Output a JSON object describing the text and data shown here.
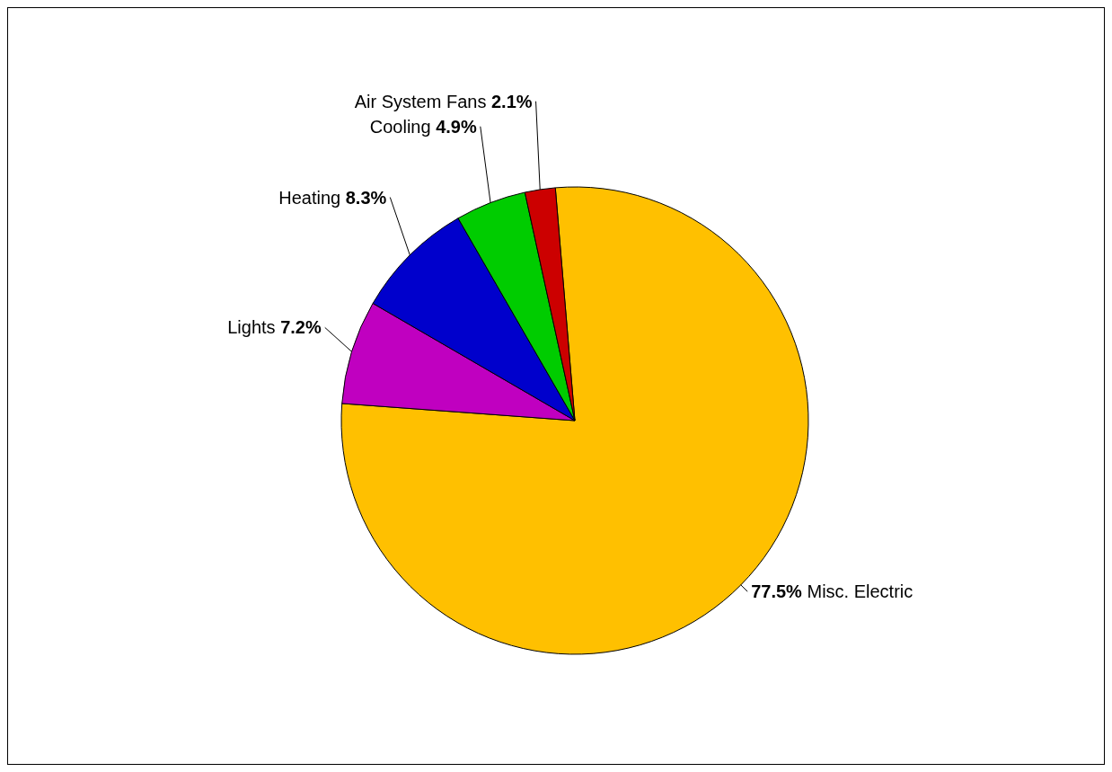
{
  "chart_data": {
    "type": "pie",
    "categories": [
      "Misc. Electric",
      "Lights",
      "Heating",
      "Cooling",
      "Air System Fans"
    ],
    "values": [
      77.5,
      7.2,
      8.3,
      4.9,
      2.1
    ],
    "colors": [
      "#ffc000",
      "#c000c0",
      "#0000cc",
      "#00cc00",
      "#cc0000"
    ],
    "value_labels": [
      "77.5%",
      "7.2%",
      "8.3%",
      "4.9%",
      "2.1%"
    ]
  }
}
